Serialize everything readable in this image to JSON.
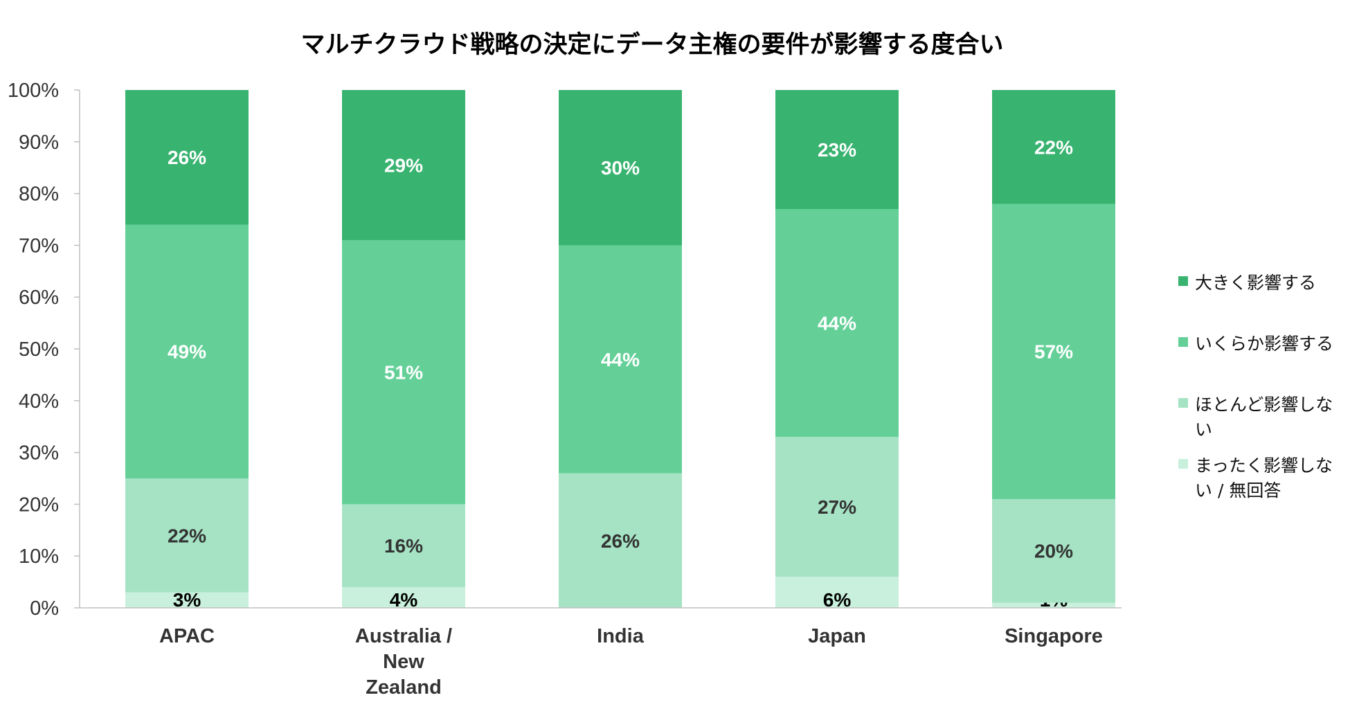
{
  "chart_data": {
    "type": "bar",
    "stacked": true,
    "percent": true,
    "title": "マルチクラウド戦略の決定にデータ主権の要件が影響する度合い",
    "categories": [
      "APAC",
      "Australia / New Zealand",
      "India",
      "Japan",
      "Singapore"
    ],
    "category_lines": [
      [
        "APAC"
      ],
      [
        "Australia /",
        "New",
        "Zealand"
      ],
      [
        "India"
      ],
      [
        "Japan"
      ],
      [
        "Singapore"
      ]
    ],
    "series": [
      {
        "name": "まったく影響しない / 無回答",
        "values": [
          3,
          4,
          0,
          6,
          1
        ],
        "color": "#c8f0dc",
        "label_color": "#000000"
      },
      {
        "name": "ほとんど影響しない",
        "values": [
          22,
          16,
          26,
          27,
          20
        ],
        "color": "#a5e3c4",
        "label_color": "#333333"
      },
      {
        "name": "いくらか影響する",
        "values": [
          49,
          51,
          44,
          44,
          57
        ],
        "color": "#64d098",
        "label_color": "#ffffff"
      },
      {
        "name": "大きく影響する",
        "values": [
          26,
          29,
          30,
          23,
          22
        ],
        "color": "#38b370",
        "label_color": "#ffffff"
      }
    ],
    "legend_order": [
      "大きく影響する",
      "いくらか影響する",
      "ほとんど影響しない",
      "まったく影響しない / 無回答"
    ],
    "legend_lines": [
      [
        "大きく影響する"
      ],
      [
        "いくらか影響する"
      ],
      [
        "ほとんど影響しな",
        "い"
      ],
      [
        "まったく影響しな",
        "い / 無回答"
      ]
    ],
    "ylim": [
      0,
      100
    ],
    "yticks": [
      "0%",
      "10%",
      "20%",
      "30%",
      "40%",
      "50%",
      "60%",
      "70%",
      "80%",
      "90%",
      "100%"
    ],
    "xlabel": "",
    "ylabel": "",
    "grid": false,
    "legend_position": "right"
  }
}
